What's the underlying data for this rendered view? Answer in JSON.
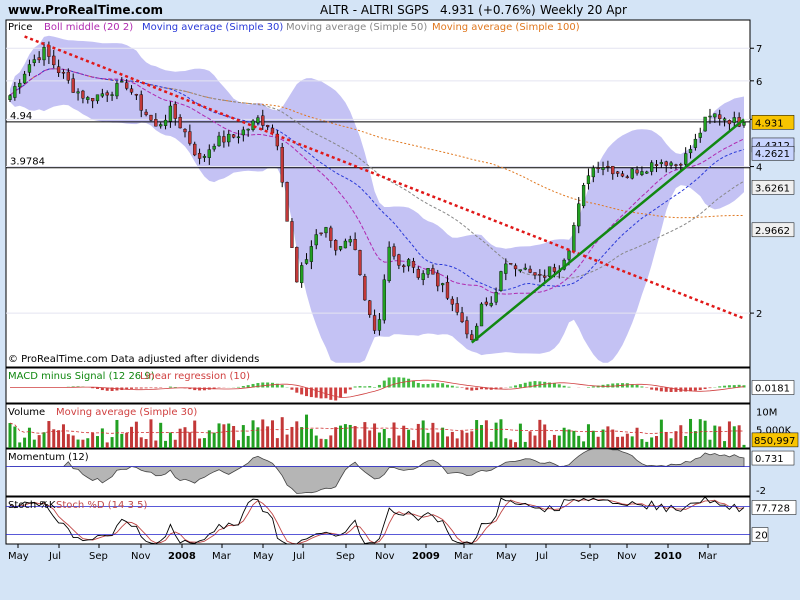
{
  "header": {
    "site": "www.ProRealTime.com",
    "title": "ALTR - ALTRI SGPS",
    "quote": "4.931 (+0.76%)",
    "period": "Weekly 20 Apr"
  },
  "colors": {
    "background": "#d4e4f6",
    "pane": "#ffffff",
    "boll_band": "#c4c2f4",
    "boll_middle": "#b02ab0",
    "sma30": "#2a3ad8",
    "sma50": "#888888",
    "sma100": "#e07820",
    "candle_up": "#22a022",
    "candle_down": "#c23838",
    "trend_down": "#e01818",
    "trend_up": "#118811",
    "volume_avg": "#d03030",
    "momentum_fill": "#b5b5b5",
    "stoch_k": "#000000",
    "stoch_d": "#c04848",
    "stoch_level": "#2222cc"
  },
  "chart_data": [
    {
      "type": "candlestick",
      "title": "ALTR - ALTRI SGPS",
      "legend": [
        "Price",
        "Boll middle (20 2)",
        "Moving average (Simple 30)",
        "Moving average (Simple 50)",
        "Moving average (Simple 100)"
      ],
      "legend_placement": "top-left",
      "y_scale": "log",
      "ylim": [
        1.55,
        8.0
      ],
      "y_ticks": [
        2,
        4,
        5,
        6,
        7
      ],
      "x_ticks": [
        "May",
        "Jul",
        "Sep",
        "Nov",
        "2008",
        "Mar",
        "May",
        "Jul",
        "Sep",
        "Nov",
        "2009",
        "Mar",
        "May",
        "Jul",
        "Sep",
        "Nov",
        "2010",
        "Mar"
      ],
      "n_weeks": 152,
      "h_lines": [
        4.94,
        3.9784
      ],
      "h_line_labels": [
        "4.94",
        "3.9784"
      ],
      "last_value_tags": [
        {
          "label": "4.931",
          "value": 4.931
        },
        {
          "label": "4.4312",
          "value": 4.43
        },
        {
          "label": "4.2621",
          "value": 4.26
        },
        {
          "label": "3.6261",
          "value": 3.626
        },
        {
          "label": "2.9662",
          "value": 2.966
        }
      ],
      "price_anchors": [
        [
          0,
          5.6
        ],
        [
          4,
          6.5
        ],
        [
          7,
          6.9
        ],
        [
          10,
          6.3
        ],
        [
          13,
          5.8
        ],
        [
          16,
          5.5
        ],
        [
          20,
          5.7
        ],
        [
          24,
          5.9
        ],
        [
          27,
          5.3
        ],
        [
          30,
          4.8
        ],
        [
          33,
          5.2
        ],
        [
          36,
          4.7
        ],
        [
          39,
          4.1
        ],
        [
          42,
          4.5
        ],
        [
          46,
          4.6
        ],
        [
          49,
          4.8
        ],
        [
          51,
          5.0
        ],
        [
          53,
          4.9
        ],
        [
          55,
          4.5
        ],
        [
          57,
          3.1
        ],
        [
          59,
          2.3
        ],
        [
          61,
          2.6
        ],
        [
          63,
          2.9
        ],
        [
          65,
          2.95
        ],
        [
          67,
          2.7
        ],
        [
          69,
          2.85
        ],
        [
          71,
          2.75
        ],
        [
          73,
          2.1
        ],
        [
          75,
          1.8
        ],
        [
          76,
          1.9
        ],
        [
          78,
          2.7
        ],
        [
          80,
          2.5
        ],
        [
          82,
          2.6
        ],
        [
          84,
          2.4
        ],
        [
          86,
          2.45
        ],
        [
          88,
          2.3
        ],
        [
          90,
          2.2
        ],
        [
          92,
          2.0
        ],
        [
          94,
          1.85
        ],
        [
          95,
          1.72
        ],
        [
          97,
          2.05
        ],
        [
          99,
          2.1
        ],
        [
          101,
          2.4
        ],
        [
          103,
          2.55
        ],
        [
          105,
          2.5
        ],
        [
          107,
          2.4
        ],
        [
          109,
          2.35
        ],
        [
          111,
          2.45
        ],
        [
          113,
          2.5
        ],
        [
          115,
          2.75
        ],
        [
          117,
          3.3
        ],
        [
          119,
          3.9
        ],
        [
          121,
          4.05
        ],
        [
          123,
          4.0
        ],
        [
          125,
          3.9
        ],
        [
          127,
          3.85
        ],
        [
          129,
          3.95
        ],
        [
          131,
          4.0
        ],
        [
          133,
          4.1
        ],
        [
          135,
          4.1
        ],
        [
          137,
          4.05
        ],
        [
          139,
          4.2
        ],
        [
          141,
          4.5
        ],
        [
          143,
          4.95
        ],
        [
          145,
          5.1
        ],
        [
          147,
          5.05
        ],
        [
          149,
          4.95
        ],
        [
          151,
          4.931
        ]
      ],
      "trendline_down": [
        [
          3,
          7.4
        ],
        [
          151,
          1.95
        ]
      ],
      "trendline_up": [
        [
          95,
          1.74
        ],
        [
          151,
          5.0
        ]
      ]
    },
    {
      "type": "bar",
      "title": "MACD minus Signal (12 26 9)",
      "overlay": "Linear regression (10)",
      "last_value_label": "0.0181",
      "ylim": [
        -0.25,
        0.25
      ]
    },
    {
      "type": "bar",
      "title": "Volume",
      "overlay": "Moving average (Simple 30)",
      "y_ticks": [
        "10M",
        "5.000K"
      ],
      "last_value_label": "850,997",
      "ylim": [
        0,
        12000000
      ]
    },
    {
      "type": "area",
      "title": "Momentum (12)",
      "y_ticks": [
        "0.731",
        "-2"
      ],
      "last_value_label": "0.731",
      "ylim": [
        -2.5,
        1.5
      ]
    },
    {
      "type": "line",
      "title": "Stoch %K",
      "series_names": [
        "Stoch %K",
        "Stoch %D (14 3 5)"
      ],
      "levels": [
        80,
        20
      ],
      "last_value_labels": [
        "77.728",
        "20"
      ],
      "ylim": [
        0,
        100
      ]
    }
  ],
  "footer": {
    "watermark": "© ProRealTime.com  Data adjusted after dividends"
  }
}
